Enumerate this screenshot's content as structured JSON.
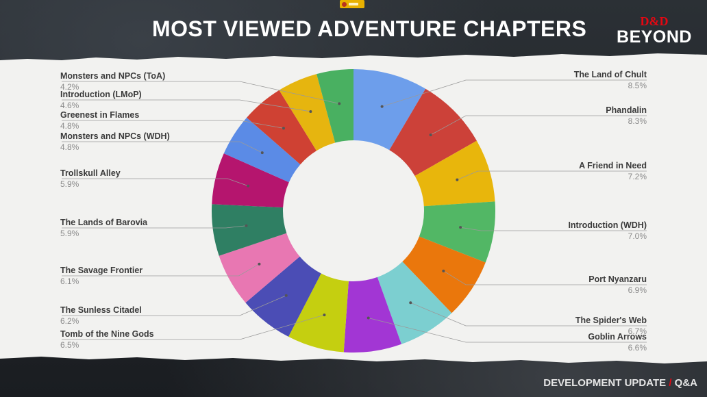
{
  "header": {
    "title": "MOST VIEWED ADVENTURE CHAPTERS"
  },
  "logo": {
    "top": "D&D",
    "bottom": "BEYOND"
  },
  "footer": {
    "main": "DEVELOPMENT UPDATE",
    "slash": "/",
    "qa": "Q&A"
  },
  "colors": {
    "background": "#1e2226",
    "paper": "#f2f2f0",
    "accent": "#e40712"
  },
  "chart_data": {
    "type": "pie",
    "donut": true,
    "title": "MOST VIEWED ADVENTURE CHAPTERS",
    "start_angle_deg": 0,
    "direction": "clockwise",
    "slices": [
      {
        "label": "The Land of Chult",
        "value": 8.5,
        "display": "8.5%",
        "color": "#6d9eeb"
      },
      {
        "label": "Phandalin",
        "value": 8.3,
        "display": "8.3%",
        "color": "#cc4139"
      },
      {
        "label": "A Friend in Need",
        "value": 7.2,
        "display": "7.2%",
        "color": "#e8b60c"
      },
      {
        "label": "Introduction (WDH)",
        "value": 7.0,
        "display": "7.0%",
        "color": "#52b765"
      },
      {
        "label": "Port Nyanzaru",
        "value": 6.9,
        "display": "6.9%",
        "color": "#ea770c"
      },
      {
        "label": "The Spider's Web",
        "value": 6.7,
        "display": "6.7%",
        "color": "#7ccfd0"
      },
      {
        "label": "Goblin Arrows",
        "value": 6.6,
        "display": "6.6%",
        "color": "#a236d4"
      },
      {
        "label": "Tomb of the Nine Gods",
        "value": 6.5,
        "display": "6.5%",
        "color": "#c5cf10"
      },
      {
        "label": "The Sunless Citadel",
        "value": 6.2,
        "display": "6.2%",
        "color": "#4b4db5"
      },
      {
        "label": "The Savage Frontier",
        "value": 6.1,
        "display": "6.1%",
        "color": "#e877b2"
      },
      {
        "label": "The Lands of Barovia",
        "value": 5.9,
        "display": "5.9%",
        "color": "#2f7f63"
      },
      {
        "label": "Trollskull Alley",
        "value": 5.9,
        "display": "5.9%",
        "color": "#b5156e"
      },
      {
        "label": "Monsters and NPCs (WDH)",
        "value": 4.8,
        "display": "4.8%",
        "color": "#5b8be6"
      },
      {
        "label": "Greenest in Flames",
        "value": 4.8,
        "display": "4.8%",
        "color": "#cf4133"
      },
      {
        "label": "Introduction (LMoP)",
        "value": 4.6,
        "display": "4.6%",
        "color": "#e6b50f"
      },
      {
        "label": "Monsters and NPCs (ToA)",
        "value": 4.2,
        "display": "4.2%",
        "color": "#49b061"
      }
    ]
  }
}
